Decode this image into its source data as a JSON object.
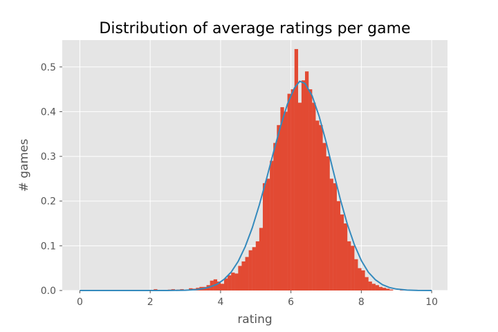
{
  "chart_data": {
    "type": "bar",
    "title": "Distribution of average ratings per game",
    "xlabel": "rating",
    "ylabel": "# games",
    "xlim": [
      -0.5,
      10.45
    ],
    "ylim": [
      0,
      0.56
    ],
    "xticks": [
      "0",
      "2",
      "4",
      "6",
      "8",
      "10"
    ],
    "yticks": [
      "0.0",
      "0.1",
      "0.2",
      "0.3",
      "0.4",
      "0.5"
    ],
    "grid": true,
    "bin_width": 0.1,
    "series": [
      {
        "kind": "histogram",
        "color": "#e24a33",
        "x": [
          2.15,
          2.55,
          2.65,
          2.8,
          2.9,
          3.15,
          3.25,
          3.35,
          3.45,
          3.55,
          3.65,
          3.75,
          3.85,
          3.95,
          4.05,
          4.15,
          4.25,
          4.35,
          4.45,
          4.55,
          4.65,
          4.75,
          4.85,
          4.95,
          5.05,
          5.15,
          5.25,
          5.35,
          5.45,
          5.55,
          5.65,
          5.75,
          5.85,
          5.95,
          6.05,
          6.15,
          6.25,
          6.35,
          6.45,
          6.55,
          6.65,
          6.75,
          6.85,
          6.95,
          7.05,
          7.15,
          7.25,
          7.35,
          7.45,
          7.55,
          7.65,
          7.75,
          7.85,
          7.95,
          8.05,
          8.15,
          8.25,
          8.35,
          8.45,
          8.55,
          8.65,
          8.75,
          8.85,
          9.15
        ],
        "y": [
          0.003,
          0.002,
          0.003,
          0.002,
          0.003,
          0.005,
          0.004,
          0.006,
          0.008,
          0.008,
          0.012,
          0.022,
          0.025,
          0.02,
          0.015,
          0.027,
          0.034,
          0.04,
          0.038,
          0.055,
          0.065,
          0.075,
          0.09,
          0.097,
          0.11,
          0.14,
          0.24,
          0.25,
          0.29,
          0.33,
          0.37,
          0.41,
          0.4,
          0.44,
          0.45,
          0.54,
          0.42,
          0.47,
          0.49,
          0.45,
          0.42,
          0.38,
          0.37,
          0.33,
          0.3,
          0.25,
          0.24,
          0.2,
          0.17,
          0.15,
          0.11,
          0.1,
          0.07,
          0.05,
          0.045,
          0.03,
          0.02,
          0.015,
          0.012,
          0.008,
          0.006,
          0.004,
          0.002,
          0.002
        ]
      },
      {
        "kind": "line",
        "color": "#348abd",
        "x": [
          0,
          0.5,
          1,
          1.5,
          2,
          2.5,
          3,
          3.3,
          3.5,
          3.7,
          3.9,
          4.1,
          4.3,
          4.5,
          4.7,
          4.9,
          5.1,
          5.3,
          5.5,
          5.7,
          5.9,
          6.1,
          6.25,
          6.4,
          6.6,
          6.8,
          7.0,
          7.2,
          7.4,
          7.6,
          7.8,
          8.0,
          8.2,
          8.4,
          8.6,
          8.8,
          9.0,
          9.3,
          9.6,
          10.0
        ],
        "y": [
          0,
          0,
          0,
          0,
          0,
          0,
          0.0006,
          0.002,
          0.004,
          0.008,
          0.014,
          0.025,
          0.041,
          0.065,
          0.098,
          0.14,
          0.191,
          0.248,
          0.308,
          0.366,
          0.417,
          0.453,
          0.468,
          0.463,
          0.436,
          0.39,
          0.332,
          0.268,
          0.205,
          0.149,
          0.103,
          0.067,
          0.041,
          0.024,
          0.013,
          0.0067,
          0.0032,
          0.001,
          0.0002,
          0
        ]
      }
    ]
  }
}
